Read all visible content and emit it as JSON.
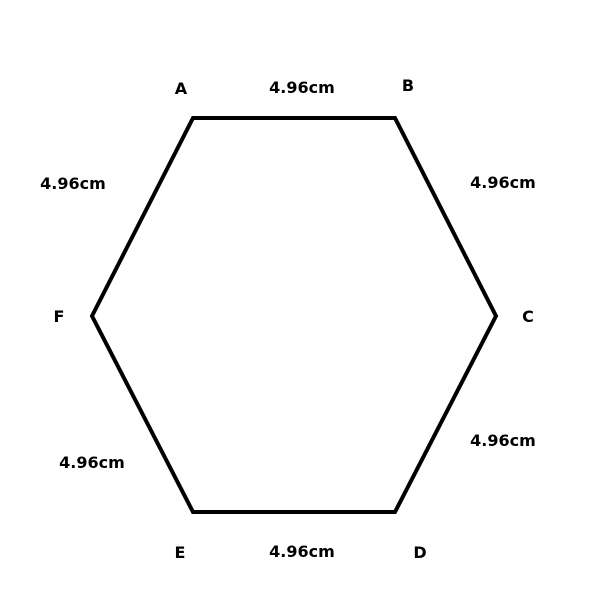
{
  "diagram": {
    "shape": "hexagon",
    "stroke_color": "#000000",
    "background_color": "#ffffff",
    "vertices": [
      {
        "id": "A",
        "label": "A"
      },
      {
        "id": "B",
        "label": "B"
      },
      {
        "id": "C",
        "label": "C"
      },
      {
        "id": "D",
        "label": "D"
      },
      {
        "id": "E",
        "label": "E"
      },
      {
        "id": "F",
        "label": "F"
      }
    ],
    "edges": [
      {
        "from": "A",
        "to": "B",
        "length_label": "4.96cm"
      },
      {
        "from": "B",
        "to": "C",
        "length_label": "4.96cm"
      },
      {
        "from": "C",
        "to": "D",
        "length_label": "4.96cm"
      },
      {
        "from": "D",
        "to": "E",
        "length_label": "4.96cm"
      },
      {
        "from": "E",
        "to": "F",
        "length_label": "4.96cm"
      },
      {
        "from": "F",
        "to": "A",
        "length_label": "4.96cm"
      }
    ]
  }
}
